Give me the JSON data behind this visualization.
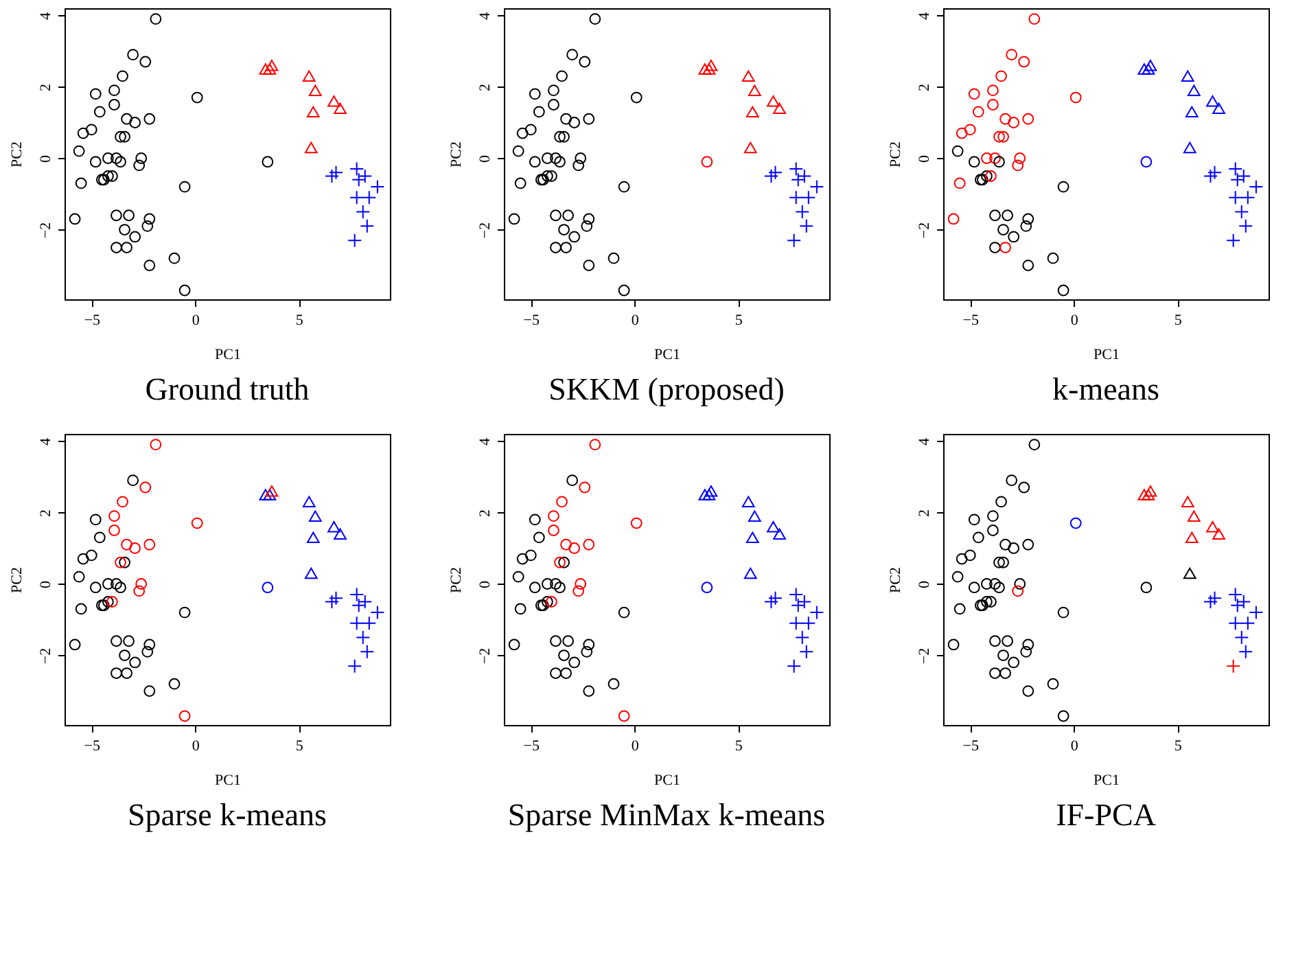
{
  "chart_data": [
    {
      "type": "scatter",
      "title": "Ground truth",
      "xlabel": "PC1",
      "ylabel": "PC2",
      "xlim": [
        -6.3,
        9.4
      ],
      "ylim": [
        -3.95,
        4.2
      ],
      "xticks": [
        {
          "value": -5,
          "label": "−5"
        },
        0,
        5
      ],
      "yticks": [
        {
          "value": -2,
          "label": "−2"
        },
        0,
        2,
        4
      ],
      "grid": false,
      "series": [
        {
          "marker": "circle",
          "x": [
            -1.9,
            -3.0,
            -2.4,
            -3.5,
            -3.9,
            -4.8,
            -3.9,
            -4.6,
            -3.3,
            -2.9,
            -2.2,
            0.1,
            -5.0,
            -5.4,
            -3.4,
            -3.6,
            -5.6,
            -4.8,
            -4.2,
            -3.8,
            -3.6,
            -2.6,
            -2.7,
            -5.5,
            -4.5,
            -4.4,
            -4.2,
            -4.0,
            -0.5,
            3.5,
            -5.8,
            -3.8,
            -3.2,
            -2.2,
            -2.3,
            -3.4,
            -2.9,
            -3.8,
            -3.3,
            -2.2,
            -1.0,
            -0.5
          ],
          "values": [
            3.9,
            2.9,
            2.7,
            2.3,
            1.9,
            1.8,
            1.5,
            1.3,
            1.1,
            1.0,
            1.1,
            1.7,
            0.8,
            0.7,
            0.6,
            0.6,
            0.2,
            -0.1,
            0.0,
            0.0,
            -0.1,
            0.0,
            -0.2,
            -0.7,
            -0.6,
            -0.6,
            -0.5,
            -0.5,
            -0.8,
            -0.1,
            -1.7,
            -1.6,
            -1.6,
            -1.7,
            -1.9,
            -2.0,
            -2.2,
            -2.5,
            -2.5,
            -3.0,
            -2.8,
            -3.7
          ],
          "colors": [
            "#000000",
            "#000000",
            "#000000",
            "#000000",
            "#000000",
            "#000000",
            "#000000",
            "#000000",
            "#000000",
            "#000000",
            "#000000",
            "#000000",
            "#000000",
            "#000000",
            "#000000",
            "#000000",
            "#000000",
            "#000000",
            "#000000",
            "#000000",
            "#000000",
            "#000000",
            "#000000",
            "#000000",
            "#000000",
            "#000000",
            "#000000",
            "#000000",
            "#000000",
            "#000000",
            "#000000",
            "#000000",
            "#000000",
            "#000000",
            "#000000",
            "#000000",
            "#000000",
            "#000000",
            "#000000",
            "#000000",
            "#000000",
            "#000000"
          ]
        },
        {
          "marker": "triangle",
          "x": [
            3.4,
            3.6,
            3.7,
            5.5,
            5.8,
            6.7,
            7.0,
            5.7,
            5.6
          ],
          "values": [
            2.5,
            2.5,
            2.6,
            2.3,
            1.9,
            1.6,
            1.4,
            1.3,
            0.3
          ],
          "colors": [
            "#ff0000",
            "#ff0000",
            "#ff0000",
            "#ff0000",
            "#ff0000",
            "#ff0000",
            "#ff0000",
            "#ff0000",
            "#ff0000"
          ]
        },
        {
          "marker": "cross",
          "x": [
            6.6,
            6.8,
            7.8,
            8.2,
            7.9,
            8.8,
            7.8,
            8.4,
            8.1,
            8.3,
            7.7
          ],
          "values": [
            -0.5,
            -0.4,
            -0.3,
            -0.5,
            -0.6,
            -0.8,
            -1.1,
            -1.1,
            -1.5,
            -1.9,
            -2.3
          ],
          "colors": [
            "#0000ff",
            "#0000ff",
            "#0000ff",
            "#0000ff",
            "#0000ff",
            "#0000ff",
            "#0000ff",
            "#0000ff",
            "#0000ff",
            "#0000ff",
            "#0000ff"
          ]
        }
      ]
    },
    {
      "type": "scatter",
      "title": "SKKM (proposed)",
      "xlabel": "PC1",
      "ylabel": "PC2",
      "xlim": [
        -6.3,
        9.4
      ],
      "ylim": [
        -3.95,
        4.2
      ],
      "xticks": [
        {
          "value": -5,
          "label": "−5"
        },
        0,
        5
      ],
      "yticks": [
        {
          "value": -2,
          "label": "−2"
        },
        0,
        2,
        4
      ],
      "grid": false,
      "series": [
        {
          "marker": "circle",
          "x": [
            -1.9,
            -3.0,
            -2.4,
            -3.5,
            -3.9,
            -4.8,
            -3.9,
            -4.6,
            -3.3,
            -2.9,
            -2.2,
            0.1,
            -5.0,
            -5.4,
            -3.4,
            -3.6,
            -5.6,
            -4.8,
            -4.2,
            -3.8,
            -3.6,
            -2.6,
            -2.7,
            -5.5,
            -4.5,
            -4.4,
            -4.2,
            -4.0,
            -0.5,
            3.5,
            -5.8,
            -3.8,
            -3.2,
            -2.2,
            -2.3,
            -3.4,
            -2.9,
            -3.8,
            -3.3,
            -2.2,
            -1.0,
            -0.5
          ],
          "values": [
            3.9,
            2.9,
            2.7,
            2.3,
            1.9,
            1.8,
            1.5,
            1.3,
            1.1,
            1.0,
            1.1,
            1.7,
            0.8,
            0.7,
            0.6,
            0.6,
            0.2,
            -0.1,
            0.0,
            0.0,
            -0.1,
            0.0,
            -0.2,
            -0.7,
            -0.6,
            -0.6,
            -0.5,
            -0.5,
            -0.8,
            -0.1,
            -1.7,
            -1.6,
            -1.6,
            -1.7,
            -1.9,
            -2.0,
            -2.2,
            -2.5,
            -2.5,
            -3.0,
            -2.8,
            -3.7
          ],
          "colors": [
            "#000000",
            "#000000",
            "#000000",
            "#000000",
            "#000000",
            "#000000",
            "#000000",
            "#000000",
            "#000000",
            "#000000",
            "#000000",
            "#000000",
            "#000000",
            "#000000",
            "#000000",
            "#000000",
            "#000000",
            "#000000",
            "#000000",
            "#000000",
            "#000000",
            "#000000",
            "#000000",
            "#000000",
            "#000000",
            "#000000",
            "#000000",
            "#000000",
            "#000000",
            "#ff0000",
            "#000000",
            "#000000",
            "#000000",
            "#000000",
            "#000000",
            "#000000",
            "#000000",
            "#000000",
            "#000000",
            "#000000",
            "#000000",
            "#000000"
          ]
        },
        {
          "marker": "triangle",
          "x": [
            3.4,
            3.6,
            3.7,
            5.5,
            5.8,
            6.7,
            7.0,
            5.7,
            5.6
          ],
          "values": [
            2.5,
            2.5,
            2.6,
            2.3,
            1.9,
            1.6,
            1.4,
            1.3,
            0.3
          ],
          "colors": [
            "#ff0000",
            "#ff0000",
            "#ff0000",
            "#ff0000",
            "#ff0000",
            "#ff0000",
            "#ff0000",
            "#ff0000",
            "#ff0000"
          ]
        },
        {
          "marker": "cross",
          "x": [
            6.6,
            6.8,
            7.8,
            8.2,
            7.9,
            8.8,
            7.8,
            8.4,
            8.1,
            8.3,
            7.7
          ],
          "values": [
            -0.5,
            -0.4,
            -0.3,
            -0.5,
            -0.6,
            -0.8,
            -1.1,
            -1.1,
            -1.5,
            -1.9,
            -2.3
          ],
          "colors": [
            "#0000ff",
            "#0000ff",
            "#0000ff",
            "#0000ff",
            "#0000ff",
            "#0000ff",
            "#0000ff",
            "#0000ff",
            "#0000ff",
            "#0000ff",
            "#0000ff"
          ]
        }
      ]
    },
    {
      "type": "scatter",
      "title": "k-means",
      "xlabel": "PC1",
      "ylabel": "PC2",
      "xlim": [
        -6.3,
        9.4
      ],
      "ylim": [
        -3.95,
        4.2
      ],
      "xticks": [
        {
          "value": -5,
          "label": "−5"
        },
        0,
        5
      ],
      "yticks": [
        {
          "value": -2,
          "label": "−2"
        },
        0,
        2,
        4
      ],
      "grid": false,
      "series": [
        {
          "marker": "circle",
          "x": [
            -1.9,
            -3.0,
            -2.4,
            -3.5,
            -3.9,
            -4.8,
            -3.9,
            -4.6,
            -3.3,
            -2.9,
            -2.2,
            0.1,
            -5.0,
            -5.4,
            -3.4,
            -3.6,
            -5.6,
            -4.8,
            -4.2,
            -3.8,
            -3.6,
            -2.6,
            -2.7,
            -5.5,
            -4.5,
            -4.4,
            -4.2,
            -4.0,
            -0.5,
            3.5,
            -5.8,
            -3.8,
            -3.2,
            -2.2,
            -2.3,
            -3.4,
            -2.9,
            -3.8,
            -3.3,
            -2.2,
            -1.0,
            -0.5
          ],
          "values": [
            3.9,
            2.9,
            2.7,
            2.3,
            1.9,
            1.8,
            1.5,
            1.3,
            1.1,
            1.0,
            1.1,
            1.7,
            0.8,
            0.7,
            0.6,
            0.6,
            0.2,
            -0.1,
            0.0,
            0.0,
            -0.1,
            0.0,
            -0.2,
            -0.7,
            -0.6,
            -0.6,
            -0.5,
            -0.5,
            -0.8,
            -0.1,
            -1.7,
            -1.6,
            -1.6,
            -1.7,
            -1.9,
            -2.0,
            -2.2,
            -2.5,
            -2.5,
            -3.0,
            -2.8,
            -3.7
          ],
          "colors": [
            "#ff0000",
            "#ff0000",
            "#ff0000",
            "#ff0000",
            "#ff0000",
            "#ff0000",
            "#ff0000",
            "#ff0000",
            "#ff0000",
            "#ff0000",
            "#ff0000",
            "#ff0000",
            "#ff0000",
            "#ff0000",
            "#ff0000",
            "#ff0000",
            "#000000",
            "#000000",
            "#ff0000",
            "#ff0000",
            "#000000",
            "#ff0000",
            "#ff0000",
            "#ff0000",
            "#000000",
            "#000000",
            "#000000",
            "#ff0000",
            "#000000",
            "#0000ff",
            "#ff0000",
            "#000000",
            "#000000",
            "#000000",
            "#000000",
            "#000000",
            "#000000",
            "#000000",
            "#ff0000",
            "#000000",
            "#000000",
            "#000000"
          ]
        },
        {
          "marker": "triangle",
          "x": [
            3.4,
            3.6,
            3.7,
            5.5,
            5.8,
            6.7,
            7.0,
            5.7,
            5.6
          ],
          "values": [
            2.5,
            2.5,
            2.6,
            2.3,
            1.9,
            1.6,
            1.4,
            1.3,
            0.3
          ],
          "colors": [
            "#0000ff",
            "#0000ff",
            "#0000ff",
            "#0000ff",
            "#0000ff",
            "#0000ff",
            "#0000ff",
            "#0000ff",
            "#0000ff"
          ]
        },
        {
          "marker": "cross",
          "x": [
            6.6,
            6.8,
            7.8,
            8.2,
            7.9,
            8.8,
            7.8,
            8.4,
            8.1,
            8.3,
            7.7
          ],
          "values": [
            -0.5,
            -0.4,
            -0.3,
            -0.5,
            -0.6,
            -0.8,
            -1.1,
            -1.1,
            -1.5,
            -1.9,
            -2.3
          ],
          "colors": [
            "#0000ff",
            "#0000ff",
            "#0000ff",
            "#0000ff",
            "#0000ff",
            "#0000ff",
            "#0000ff",
            "#0000ff",
            "#0000ff",
            "#0000ff",
            "#0000ff"
          ]
        }
      ]
    },
    {
      "type": "scatter",
      "title": "Sparse k-means",
      "xlabel": "PC1",
      "ylabel": "PC2",
      "xlim": [
        -6.3,
        9.4
      ],
      "ylim": [
        -3.95,
        4.2
      ],
      "xticks": [
        {
          "value": -5,
          "label": "−5"
        },
        0,
        5
      ],
      "yticks": [
        {
          "value": -2,
          "label": "−2"
        },
        0,
        2,
        4
      ],
      "grid": false,
      "series": [
        {
          "marker": "circle",
          "x": [
            -1.9,
            -3.0,
            -2.4,
            -3.5,
            -3.9,
            -4.8,
            -3.9,
            -4.6,
            -3.3,
            -2.9,
            -2.2,
            0.1,
            -5.0,
            -5.4,
            -3.4,
            -3.6,
            -5.6,
            -4.8,
            -4.2,
            -3.8,
            -3.6,
            -2.6,
            -2.7,
            -5.5,
            -4.5,
            -4.4,
            -4.2,
            -4.0,
            -0.5,
            3.5,
            -5.8,
            -3.8,
            -3.2,
            -2.2,
            -2.3,
            -3.4,
            -2.9,
            -3.8,
            -3.3,
            -2.2,
            -1.0,
            -0.5
          ],
          "values": [
            3.9,
            2.9,
            2.7,
            2.3,
            1.9,
            1.8,
            1.5,
            1.3,
            1.1,
            1.0,
            1.1,
            1.7,
            0.8,
            0.7,
            0.6,
            0.6,
            0.2,
            -0.1,
            0.0,
            0.0,
            -0.1,
            0.0,
            -0.2,
            -0.7,
            -0.6,
            -0.6,
            -0.5,
            -0.5,
            -0.8,
            -0.1,
            -1.7,
            -1.6,
            -1.6,
            -1.7,
            -1.9,
            -2.0,
            -2.2,
            -2.5,
            -2.5,
            -3.0,
            -2.8,
            -3.7
          ],
          "colors": [
            "#ff0000",
            "#000000",
            "#ff0000",
            "#ff0000",
            "#ff0000",
            "#000000",
            "#ff0000",
            "#000000",
            "#ff0000",
            "#ff0000",
            "#ff0000",
            "#ff0000",
            "#000000",
            "#000000",
            "#000000",
            "#ff0000",
            "#000000",
            "#000000",
            "#000000",
            "#000000",
            "#000000",
            "#ff0000",
            "#ff0000",
            "#000000",
            "#000000",
            "#000000",
            "#000000",
            "#ff0000",
            "#000000",
            "#0000ff",
            "#000000",
            "#000000",
            "#000000",
            "#000000",
            "#000000",
            "#000000",
            "#000000",
            "#000000",
            "#000000",
            "#000000",
            "#000000",
            "#ff0000"
          ]
        },
        {
          "marker": "triangle",
          "x": [
            3.4,
            3.6,
            3.7,
            5.5,
            5.8,
            6.7,
            7.0,
            5.7,
            5.6
          ],
          "values": [
            2.5,
            2.5,
            2.6,
            2.3,
            1.9,
            1.6,
            1.4,
            1.3,
            0.3
          ],
          "colors": [
            "#0000ff",
            "#0000ff",
            "#ff0000",
            "#0000ff",
            "#0000ff",
            "#0000ff",
            "#0000ff",
            "#0000ff",
            "#0000ff"
          ]
        },
        {
          "marker": "cross",
          "x": [
            6.6,
            6.8,
            7.8,
            8.2,
            7.9,
            8.8,
            7.8,
            8.4,
            8.1,
            8.3,
            7.7
          ],
          "values": [
            -0.5,
            -0.4,
            -0.3,
            -0.5,
            -0.6,
            -0.8,
            -1.1,
            -1.1,
            -1.5,
            -1.9,
            -2.3
          ],
          "colors": [
            "#0000ff",
            "#0000ff",
            "#0000ff",
            "#0000ff",
            "#0000ff",
            "#0000ff",
            "#0000ff",
            "#0000ff",
            "#0000ff",
            "#0000ff",
            "#0000ff"
          ]
        }
      ]
    },
    {
      "type": "scatter",
      "title": "Sparse MinMax k-means",
      "xlabel": "PC1",
      "ylabel": "PC2",
      "xlim": [
        -6.3,
        9.4
      ],
      "ylim": [
        -3.95,
        4.2
      ],
      "xticks": [
        {
          "value": -5,
          "label": "−5"
        },
        0,
        5
      ],
      "yticks": [
        {
          "value": -2,
          "label": "−2"
        },
        0,
        2,
        4
      ],
      "grid": false,
      "series": [
        {
          "marker": "circle",
          "x": [
            -1.9,
            -3.0,
            -2.4,
            -3.5,
            -3.9,
            -4.8,
            -3.9,
            -4.6,
            -3.3,
            -2.9,
            -2.2,
            0.1,
            -5.0,
            -5.4,
            -3.4,
            -3.6,
            -5.6,
            -4.8,
            -4.2,
            -3.8,
            -3.6,
            -2.6,
            -2.7,
            -5.5,
            -4.5,
            -4.4,
            -4.2,
            -4.0,
            -0.5,
            3.5,
            -5.8,
            -3.8,
            -3.2,
            -2.2,
            -2.3,
            -3.4,
            -2.9,
            -3.8,
            -3.3,
            -2.2,
            -1.0,
            -0.5
          ],
          "values": [
            3.9,
            2.9,
            2.7,
            2.3,
            1.9,
            1.8,
            1.5,
            1.3,
            1.1,
            1.0,
            1.1,
            1.7,
            0.8,
            0.7,
            0.6,
            0.6,
            0.2,
            -0.1,
            0.0,
            0.0,
            -0.1,
            0.0,
            -0.2,
            -0.7,
            -0.6,
            -0.6,
            -0.5,
            -0.5,
            -0.8,
            -0.1,
            -1.7,
            -1.6,
            -1.6,
            -1.7,
            -1.9,
            -2.0,
            -2.2,
            -2.5,
            -2.5,
            -3.0,
            -2.8,
            -3.7
          ],
          "colors": [
            "#ff0000",
            "#000000",
            "#ff0000",
            "#ff0000",
            "#ff0000",
            "#000000",
            "#ff0000",
            "#000000",
            "#ff0000",
            "#ff0000",
            "#ff0000",
            "#ff0000",
            "#000000",
            "#000000",
            "#000000",
            "#ff0000",
            "#000000",
            "#000000",
            "#000000",
            "#000000",
            "#000000",
            "#ff0000",
            "#ff0000",
            "#000000",
            "#000000",
            "#000000",
            "#000000",
            "#ff0000",
            "#000000",
            "#0000ff",
            "#000000",
            "#000000",
            "#000000",
            "#000000",
            "#000000",
            "#000000",
            "#000000",
            "#000000",
            "#000000",
            "#000000",
            "#000000",
            "#ff0000"
          ]
        },
        {
          "marker": "triangle",
          "x": [
            3.4,
            3.6,
            3.7,
            5.5,
            5.8,
            6.7,
            7.0,
            5.7,
            5.6
          ],
          "values": [
            2.5,
            2.5,
            2.6,
            2.3,
            1.9,
            1.6,
            1.4,
            1.3,
            0.3
          ],
          "colors": [
            "#0000ff",
            "#0000ff",
            "#0000ff",
            "#0000ff",
            "#0000ff",
            "#0000ff",
            "#0000ff",
            "#0000ff",
            "#0000ff"
          ]
        },
        {
          "marker": "cross",
          "x": [
            6.6,
            6.8,
            7.8,
            8.2,
            7.9,
            8.8,
            7.8,
            8.4,
            8.1,
            8.3,
            7.7
          ],
          "values": [
            -0.5,
            -0.4,
            -0.3,
            -0.5,
            -0.6,
            -0.8,
            -1.1,
            -1.1,
            -1.5,
            -1.9,
            -2.3
          ],
          "colors": [
            "#0000ff",
            "#0000ff",
            "#0000ff",
            "#0000ff",
            "#0000ff",
            "#0000ff",
            "#0000ff",
            "#0000ff",
            "#0000ff",
            "#0000ff",
            "#0000ff"
          ]
        }
      ]
    },
    {
      "type": "scatter",
      "title": "IF-PCA",
      "xlabel": "PC1",
      "ylabel": "PC2",
      "xlim": [
        -6.3,
        9.4
      ],
      "ylim": [
        -3.95,
        4.2
      ],
      "xticks": [
        {
          "value": -5,
          "label": "−5"
        },
        0,
        5
      ],
      "yticks": [
        {
          "value": -2,
          "label": "−2"
        },
        0,
        2,
        4
      ],
      "grid": false,
      "series": [
        {
          "marker": "circle",
          "x": [
            -1.9,
            -3.0,
            -2.4,
            -3.5,
            -3.9,
            -4.8,
            -3.9,
            -4.6,
            -3.3,
            -2.9,
            -2.2,
            0.1,
            -5.0,
            -5.4,
            -3.4,
            -3.6,
            -5.6,
            -4.8,
            -4.2,
            -3.8,
            -3.6,
            -2.6,
            -2.7,
            -5.5,
            -4.5,
            -4.4,
            -4.2,
            -4.0,
            -0.5,
            3.5,
            -5.8,
            -3.8,
            -3.2,
            -2.2,
            -2.3,
            -3.4,
            -2.9,
            -3.8,
            -3.3,
            -2.2,
            -1.0,
            -0.5
          ],
          "values": [
            3.9,
            2.9,
            2.7,
            2.3,
            1.9,
            1.8,
            1.5,
            1.3,
            1.1,
            1.0,
            1.1,
            1.7,
            0.8,
            0.7,
            0.6,
            0.6,
            0.2,
            -0.1,
            0.0,
            0.0,
            -0.1,
            0.0,
            -0.2,
            -0.7,
            -0.6,
            -0.6,
            -0.5,
            -0.5,
            -0.8,
            -0.1,
            -1.7,
            -1.6,
            -1.6,
            -1.7,
            -1.9,
            -2.0,
            -2.2,
            -2.5,
            -2.5,
            -3.0,
            -2.8,
            -3.7
          ],
          "colors": [
            "#000000",
            "#000000",
            "#000000",
            "#000000",
            "#000000",
            "#000000",
            "#000000",
            "#000000",
            "#000000",
            "#000000",
            "#000000",
            "#0000ff",
            "#000000",
            "#000000",
            "#000000",
            "#000000",
            "#000000",
            "#000000",
            "#000000",
            "#000000",
            "#000000",
            "#000000",
            "#ff0000",
            "#000000",
            "#000000",
            "#000000",
            "#000000",
            "#000000",
            "#000000",
            "#000000",
            "#000000",
            "#000000",
            "#000000",
            "#000000",
            "#000000",
            "#000000",
            "#000000",
            "#000000",
            "#000000",
            "#000000",
            "#000000",
            "#000000"
          ]
        },
        {
          "marker": "triangle",
          "x": [
            3.4,
            3.6,
            3.7,
            5.5,
            5.8,
            6.7,
            7.0,
            5.7,
            5.6
          ],
          "values": [
            2.5,
            2.5,
            2.6,
            2.3,
            1.9,
            1.6,
            1.4,
            1.3,
            0.3
          ],
          "colors": [
            "#ff0000",
            "#ff0000",
            "#ff0000",
            "#ff0000",
            "#ff0000",
            "#ff0000",
            "#ff0000",
            "#ff0000",
            "#000000"
          ]
        },
        {
          "marker": "cross",
          "x": [
            6.6,
            6.8,
            7.8,
            8.2,
            7.9,
            8.8,
            7.8,
            8.4,
            8.1,
            8.3,
            7.7
          ],
          "values": [
            -0.5,
            -0.4,
            -0.3,
            -0.5,
            -0.6,
            -0.8,
            -1.1,
            -1.1,
            -1.5,
            -1.9,
            -2.3
          ],
          "colors": [
            "#0000ff",
            "#0000ff",
            "#0000ff",
            "#0000ff",
            "#0000ff",
            "#0000ff",
            "#0000ff",
            "#0000ff",
            "#0000ff",
            "#0000ff",
            "#ff0000"
          ]
        }
      ]
    }
  ]
}
